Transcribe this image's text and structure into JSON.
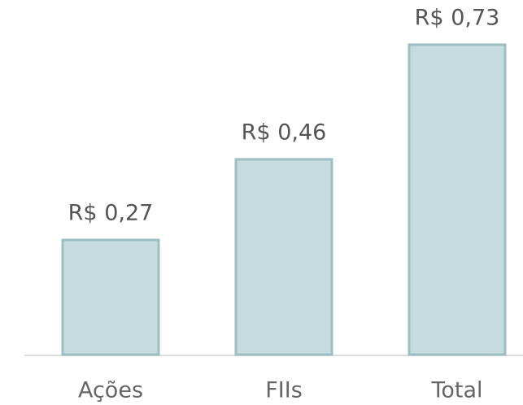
{
  "chart_data": {
    "type": "bar",
    "categories": [
      "Ações",
      "FIIs",
      "Total"
    ],
    "values": [
      0.27,
      0.46,
      0.73
    ],
    "value_labels": [
      "R$ 0,27",
      "R$ 0,46",
      "R$ 0,73"
    ],
    "color": "#c6dbde"
  }
}
